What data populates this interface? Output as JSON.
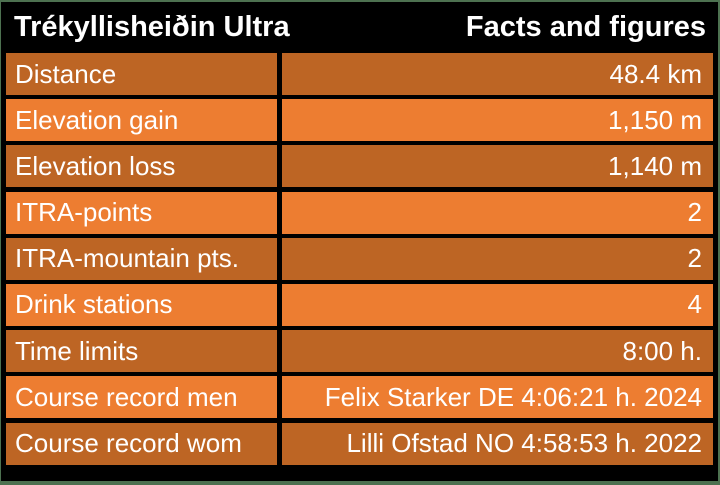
{
  "page": {
    "background_color": "#4D7150"
  },
  "table": {
    "header": {
      "title": "Trékyllisheiðin Ultra",
      "subtitle": "Facts and figures",
      "background_color": "#000000",
      "text_color": "#FFFFFF"
    },
    "colors": {
      "row_light": "#ED7D31",
      "row_dark": "#BD6524",
      "border": "#000000",
      "text": "#FFFFFF"
    },
    "rows": [
      {
        "label": "Distance",
        "value": "48.4 km",
        "shade": "dark"
      },
      {
        "label": "Elevation gain",
        "value": "1,150 m",
        "shade": "light"
      },
      {
        "label": "Elevation loss",
        "value": "1,140 m",
        "shade": "dark"
      },
      {
        "label": "ITRA-points",
        "value": "2",
        "shade": "light"
      },
      {
        "label": "ITRA-mountain pts.",
        "value": "2",
        "shade": "dark"
      },
      {
        "label": "Drink stations",
        "value": "4",
        "shade": "light"
      },
      {
        "label": "Time limits",
        "value": "8:00 h.",
        "shade": "dark"
      },
      {
        "label": "Course record men",
        "value": "Felix Starker DE 4:06:21 h. 2024",
        "shade": "light"
      },
      {
        "label": "Course record wom",
        "value": "Lilli Ofstad NO 4:58:53 h. 2022",
        "shade": "dark"
      }
    ]
  },
  "chart_data": {
    "type": "table",
    "title": "Trékyllisheiðin Ultra — Facts and figures",
    "columns": [
      "Trékyllisheiðin Ultra",
      "Facts and figures"
    ],
    "rows": [
      [
        "Distance",
        "48.4 km"
      ],
      [
        "Elevation gain",
        "1,150 m"
      ],
      [
        "Elevation loss",
        "1,140 m"
      ],
      [
        "ITRA-points",
        "2"
      ],
      [
        "ITRA-mountain pts.",
        "2"
      ],
      [
        "Drink stations",
        "4"
      ],
      [
        "Time limits",
        "8:00 h."
      ],
      [
        "Course record men",
        "Felix Starker DE 4:06:21 h. 2024"
      ],
      [
        "Course record wom",
        "Lilli Ofstad NO 4:58:53 h. 2022"
      ]
    ],
    "layout_hints": {
      "header_background": "#000000",
      "alternating_row_colors": [
        "#BD6524",
        "#ED7D31"
      ],
      "value_alignment": "right",
      "grid": "black separators"
    }
  }
}
